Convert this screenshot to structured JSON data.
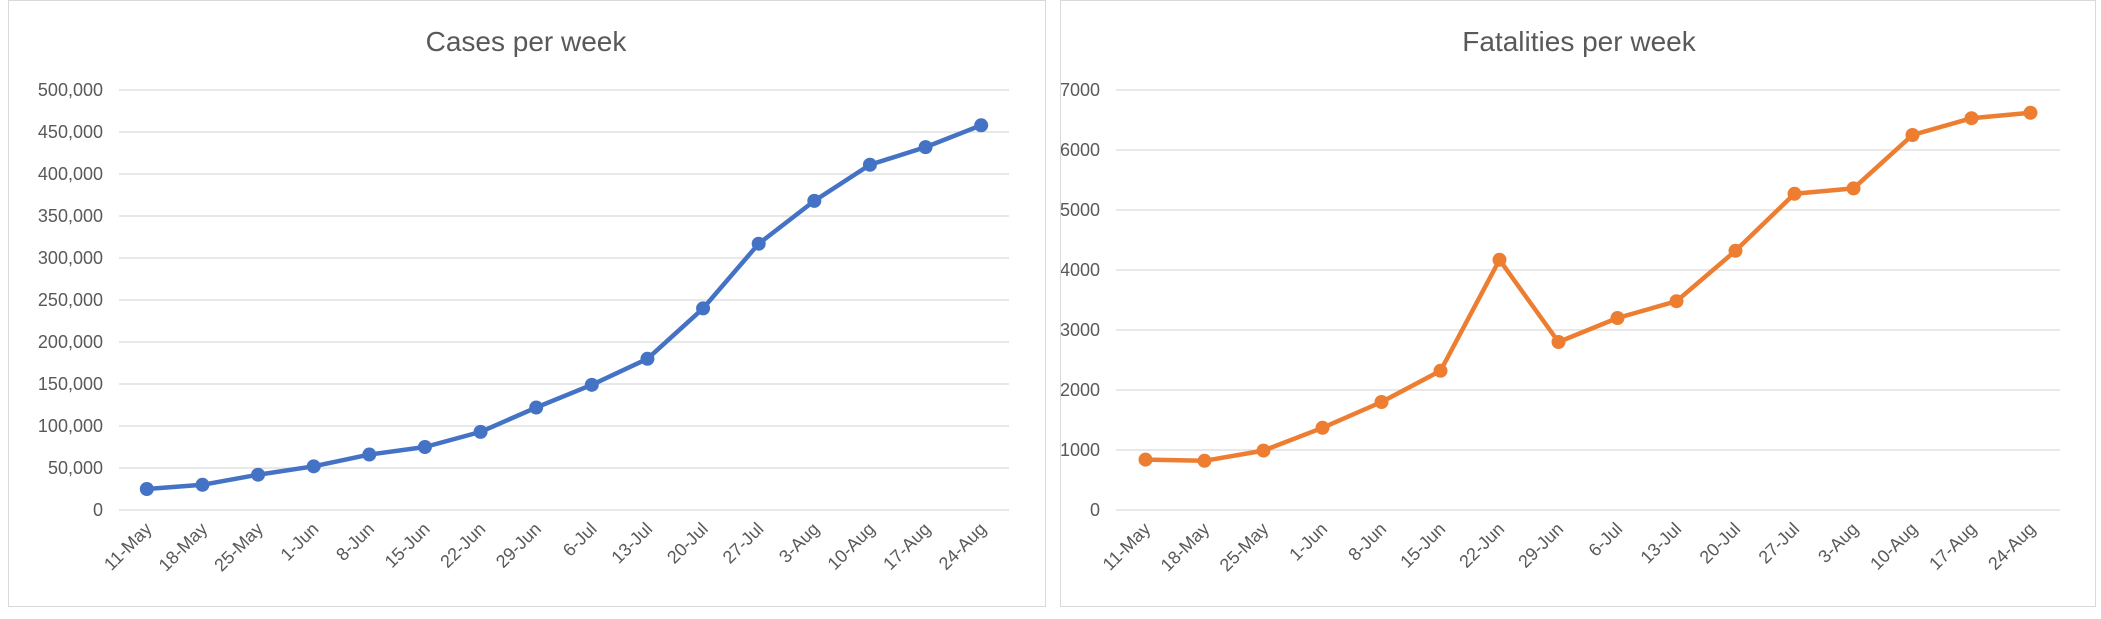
{
  "chart_data": [
    {
      "type": "line",
      "title": "Cases per week",
      "xlabel": "",
      "ylabel": "",
      "categories": [
        "11-May",
        "18-May",
        "25-May",
        "1-Jun",
        "8-Jun",
        "15-Jun",
        "22-Jun",
        "29-Jun",
        "6-Jul",
        "13-Jul",
        "20-Jul",
        "27-Jul",
        "3-Aug",
        "10-Aug",
        "17-Aug",
        "24-Aug"
      ],
      "series": [
        {
          "color": "#4472c4",
          "values": [
            25000,
            30000,
            42000,
            52000,
            66000,
            75000,
            93000,
            122000,
            149000,
            180000,
            240000,
            317000,
            368000,
            411000,
            432000,
            458000
          ]
        }
      ],
      "ylim": [
        0,
        500000
      ],
      "yticks": [
        0,
        50000,
        100000,
        150000,
        200000,
        250000,
        300000,
        350000,
        400000,
        450000,
        500000
      ],
      "ytick_labels": [
        "0",
        "50,000",
        "100,000",
        "150,000",
        "200,000",
        "250,000",
        "300,000",
        "350,000",
        "400,000",
        "450,000",
        "500,000"
      ],
      "grid": true,
      "legend": "none"
    },
    {
      "type": "line",
      "title": "Fatalities per week",
      "xlabel": "",
      "ylabel": "",
      "categories": [
        "11-May",
        "18-May",
        "25-May",
        "1-Jun",
        "8-Jun",
        "15-Jun",
        "22-Jun",
        "29-Jun",
        "6-Jul",
        "13-Jul",
        "20-Jul",
        "27-Jul",
        "3-Aug",
        "10-Aug",
        "17-Aug",
        "24-Aug"
      ],
      "series": [
        {
          "color": "#ed7d31",
          "values": [
            840,
            820,
            990,
            1370,
            1800,
            2320,
            4170,
            2800,
            3200,
            3480,
            4320,
            5270,
            5360,
            6250,
            6530,
            6620
          ]
        }
      ],
      "ylim": [
        0,
        7000
      ],
      "yticks": [
        0,
        1000,
        2000,
        3000,
        4000,
        5000,
        6000,
        7000
      ],
      "ytick_labels": [
        "0",
        "1000",
        "2000",
        "3000",
        "4000",
        "5000",
        "6000",
        "7000"
      ],
      "grid": true,
      "legend": "none"
    }
  ]
}
